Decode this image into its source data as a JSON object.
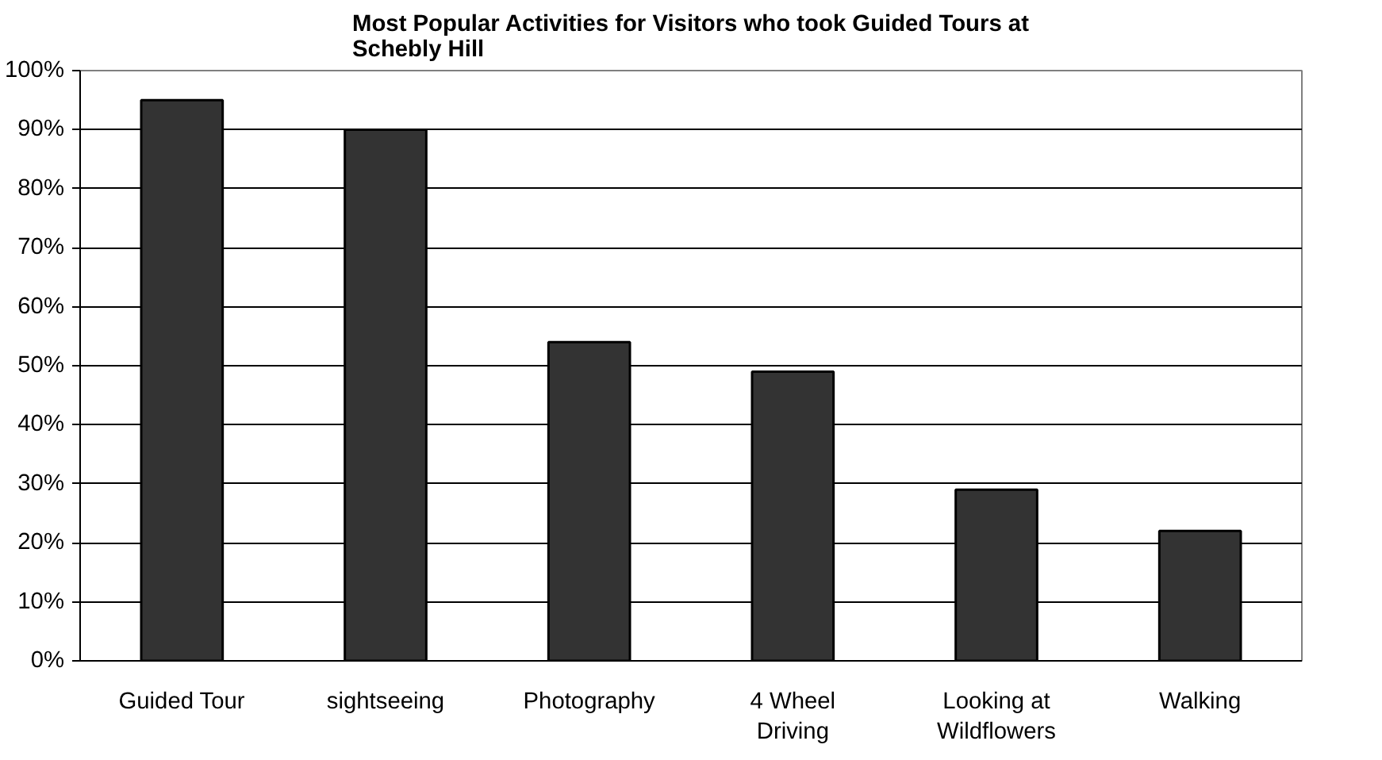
{
  "chart_data": {
    "type": "bar",
    "title": "Most Popular Activities for Visitors who took Guided Tours at\nSchebly Hill",
    "categories": [
      "Guided Tour",
      "sightseeing",
      "Photography",
      "4 Wheel\nDriving",
      "Looking at\nWildflowers",
      "Walking"
    ],
    "values": [
      95,
      90,
      54,
      49,
      29,
      22
    ],
    "color": "#333333",
    "ylim": [
      0,
      100
    ],
    "yticks": [
      {
        "value": 0,
        "label": "0%"
      },
      {
        "value": 10,
        "label": "10%"
      },
      {
        "value": 20,
        "label": "20%"
      },
      {
        "value": 30,
        "label": "30%"
      },
      {
        "value": 40,
        "label": "40%"
      },
      {
        "value": 50,
        "label": "50%"
      },
      {
        "value": 60,
        "label": "60%"
      },
      {
        "value": 70,
        "label": "70%"
      },
      {
        "value": 80,
        "label": "80%"
      },
      {
        "value": 90,
        "label": "90%"
      },
      {
        "value": 100,
        "label": "100%"
      }
    ],
    "grid": "y"
  }
}
